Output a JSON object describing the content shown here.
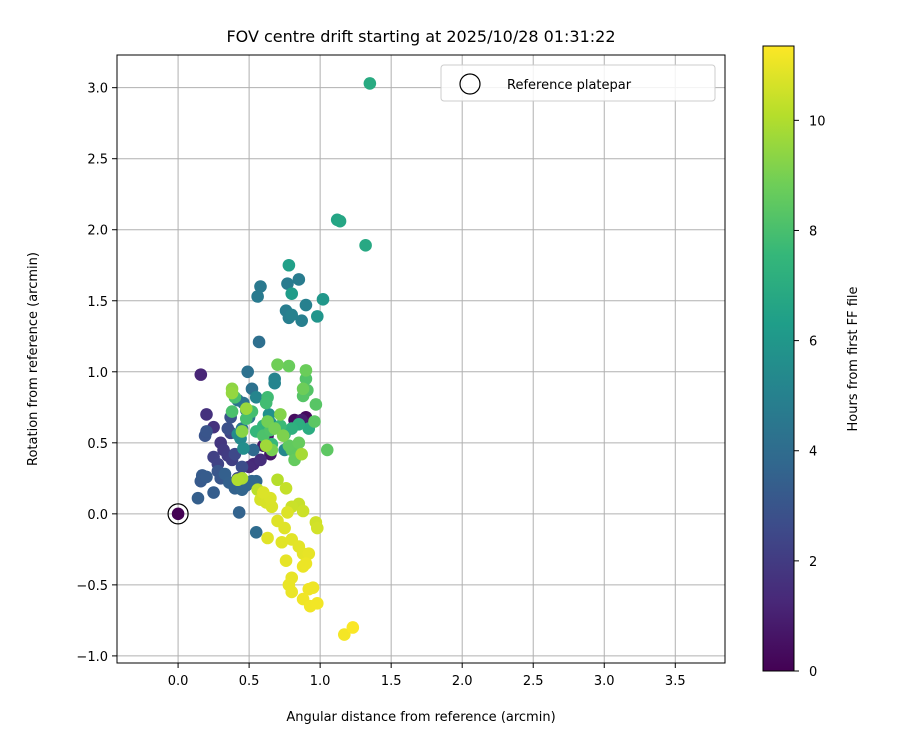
{
  "chart_data": {
    "type": "scatter",
    "title": "FOV centre drift starting at 2025/10/28 01:31:22",
    "xlabel": "Angular distance from reference (arcmin)",
    "ylabel": "Rotation from reference (arcmin)",
    "xlim": [
      -0.43,
      3.85
    ],
    "ylim": [
      -1.05,
      3.23
    ],
    "xticks": [
      0.0,
      0.5,
      1.0,
      1.5,
      2.0,
      2.5,
      3.0,
      3.5
    ],
    "xtick_labels": [
      "0.0",
      "0.5",
      "1.0",
      "1.5",
      "2.0",
      "2.5",
      "3.0",
      "3.5"
    ],
    "yticks": [
      -1.0,
      -0.5,
      0.0,
      0.5,
      1.0,
      1.5,
      2.0,
      2.5,
      3.0
    ],
    "ytick_labels": [
      "−1.0",
      "−0.5",
      "0.0",
      "0.5",
      "1.0",
      "1.5",
      "2.0",
      "2.5",
      "3.0"
    ],
    "grid": true,
    "legend": {
      "position": "top-right",
      "entries": [
        "Reference platepar"
      ]
    },
    "colorbar": {
      "label": "Hours from first FF file",
      "range": [
        0,
        11.35
      ],
      "ticks": [
        0,
        2,
        4,
        6,
        8,
        10
      ],
      "tick_labels": [
        "0",
        "2",
        "4",
        "6",
        "8",
        "10"
      ],
      "colormap": [
        "#440154",
        "#482878",
        "#3e4989",
        "#31688e",
        "#26828e",
        "#1f9e89",
        "#35b779",
        "#6ece58",
        "#b5de2b",
        "#fde725"
      ]
    },
    "reference_point": {
      "x": 0.0,
      "y": 0.0
    },
    "points": [
      {
        "x": 0.0,
        "y": 0.0,
        "t": 0.0
      },
      {
        "x": 0.9,
        "y": 0.68,
        "t": 0.3
      },
      {
        "x": 0.82,
        "y": 0.66,
        "t": 0.4
      },
      {
        "x": 0.63,
        "y": 0.55,
        "t": 0.6
      },
      {
        "x": 0.65,
        "y": 0.42,
        "t": 0.7
      },
      {
        "x": 0.6,
        "y": 0.48,
        "t": 0.8
      },
      {
        "x": 0.87,
        "y": 0.66,
        "t": 0.9
      },
      {
        "x": 0.16,
        "y": 0.98,
        "t": 1.2
      },
      {
        "x": 0.53,
        "y": 0.35,
        "t": 1.3
      },
      {
        "x": 0.5,
        "y": 0.33,
        "t": 1.4
      },
      {
        "x": 0.58,
        "y": 0.38,
        "t": 1.5
      },
      {
        "x": 0.2,
        "y": 0.7,
        "t": 1.6
      },
      {
        "x": 0.25,
        "y": 0.61,
        "t": 1.7
      },
      {
        "x": 0.3,
        "y": 0.5,
        "t": 1.8
      },
      {
        "x": 0.32,
        "y": 0.45,
        "t": 1.9
      },
      {
        "x": 0.35,
        "y": 0.41,
        "t": 2.0
      },
      {
        "x": 0.38,
        "y": 0.38,
        "t": 2.1
      },
      {
        "x": 0.25,
        "y": 0.4,
        "t": 2.2
      },
      {
        "x": 0.28,
        "y": 0.35,
        "t": 2.3
      },
      {
        "x": 0.37,
        "y": 0.57,
        "t": 2.4
      },
      {
        "x": 0.4,
        "y": 0.42,
        "t": 2.5
      },
      {
        "x": 0.42,
        "y": 0.25,
        "t": 2.6
      },
      {
        "x": 0.45,
        "y": 0.33,
        "t": 2.7
      },
      {
        "x": 0.35,
        "y": 0.6,
        "t": 2.8
      },
      {
        "x": 0.37,
        "y": 0.68,
        "t": 2.9
      },
      {
        "x": 0.19,
        "y": 0.55,
        "t": 2.95
      },
      {
        "x": 0.2,
        "y": 0.58,
        "t": 3.0
      },
      {
        "x": 0.28,
        "y": 0.3,
        "t": 3.05
      },
      {
        "x": 0.3,
        "y": 0.25,
        "t": 3.1
      },
      {
        "x": 0.16,
        "y": 0.23,
        "t": 3.2
      },
      {
        "x": 0.17,
        "y": 0.27,
        "t": 3.25
      },
      {
        "x": 0.2,
        "y": 0.26,
        "t": 3.3
      },
      {
        "x": 0.25,
        "y": 0.15,
        "t": 3.35
      },
      {
        "x": 0.14,
        "y": 0.11,
        "t": 3.4
      },
      {
        "x": 0.33,
        "y": 0.28,
        "t": 3.45
      },
      {
        "x": 0.36,
        "y": 0.22,
        "t": 3.5
      },
      {
        "x": 0.4,
        "y": 0.18,
        "t": 3.55
      },
      {
        "x": 0.43,
        "y": 0.01,
        "t": 3.6
      },
      {
        "x": 0.45,
        "y": 0.17,
        "t": 3.65
      },
      {
        "x": 0.48,
        "y": 0.2,
        "t": 3.7
      },
      {
        "x": 0.55,
        "y": 0.23,
        "t": 3.75
      },
      {
        "x": 0.52,
        "y": 0.23,
        "t": 3.8
      },
      {
        "x": 0.53,
        "y": 0.45,
        "t": 3.85
      },
      {
        "x": 0.55,
        "y": -0.13,
        "t": 4.0
      },
      {
        "x": 0.57,
        "y": 1.21,
        "t": 4.1
      },
      {
        "x": 0.49,
        "y": 1.0,
        "t": 4.2
      },
      {
        "x": 0.52,
        "y": 0.88,
        "t": 4.25
      },
      {
        "x": 0.46,
        "y": 0.78,
        "t": 4.3
      },
      {
        "x": 0.42,
        "y": 0.8,
        "t": 4.35
      },
      {
        "x": 0.48,
        "y": 0.73,
        "t": 4.4
      },
      {
        "x": 0.5,
        "y": 0.68,
        "t": 4.45
      },
      {
        "x": 0.45,
        "y": 0.6,
        "t": 4.5
      },
      {
        "x": 0.58,
        "y": 1.6,
        "t": 4.6
      },
      {
        "x": 0.56,
        "y": 1.53,
        "t": 4.65
      },
      {
        "x": 0.77,
        "y": 1.62,
        "t": 4.7
      },
      {
        "x": 0.85,
        "y": 1.65,
        "t": 4.75
      },
      {
        "x": 0.76,
        "y": 1.43,
        "t": 4.8
      },
      {
        "x": 0.78,
        "y": 1.38,
        "t": 4.85
      },
      {
        "x": 0.87,
        "y": 1.36,
        "t": 4.9
      },
      {
        "x": 0.9,
        "y": 1.47,
        "t": 4.95
      },
      {
        "x": 0.8,
        "y": 1.4,
        "t": 5.0
      },
      {
        "x": 0.68,
        "y": 0.95,
        "t": 5.1
      },
      {
        "x": 0.68,
        "y": 0.92,
        "t": 5.15
      },
      {
        "x": 0.55,
        "y": 0.82,
        "t": 5.2
      },
      {
        "x": 0.75,
        "y": 0.45,
        "t": 5.3
      },
      {
        "x": 0.44,
        "y": 0.53,
        "t": 5.4
      },
      {
        "x": 0.42,
        "y": 0.56,
        "t": 5.5
      },
      {
        "x": 0.46,
        "y": 0.46,
        "t": 5.6
      },
      {
        "x": 0.64,
        "y": 0.7,
        "t": 5.7
      },
      {
        "x": 0.65,
        "y": 0.64,
        "t": 5.8
      },
      {
        "x": 0.98,
        "y": 1.39,
        "t": 5.9
      },
      {
        "x": 1.02,
        "y": 1.51,
        "t": 6.0
      },
      {
        "x": 0.8,
        "y": 1.55,
        "t": 6.2
      },
      {
        "x": 0.78,
        "y": 1.75,
        "t": 6.4
      },
      {
        "x": 1.12,
        "y": 2.07,
        "t": 6.6
      },
      {
        "x": 1.14,
        "y": 2.06,
        "t": 6.7
      },
      {
        "x": 1.32,
        "y": 1.89,
        "t": 6.8
      },
      {
        "x": 1.35,
        "y": 3.03,
        "t": 6.9
      },
      {
        "x": 0.92,
        "y": 0.6,
        "t": 7.0
      },
      {
        "x": 0.85,
        "y": 0.63,
        "t": 7.1
      },
      {
        "x": 0.8,
        "y": 0.6,
        "t": 7.2
      },
      {
        "x": 0.75,
        "y": 0.56,
        "t": 7.3
      },
      {
        "x": 0.6,
        "y": 0.62,
        "t": 7.4
      },
      {
        "x": 0.55,
        "y": 0.58,
        "t": 7.5
      },
      {
        "x": 0.66,
        "y": 0.49,
        "t": 7.6
      },
      {
        "x": 0.72,
        "y": 0.62,
        "t": 7.7
      },
      {
        "x": 0.63,
        "y": 0.82,
        "t": 7.8
      },
      {
        "x": 0.62,
        "y": 0.78,
        "t": 7.85
      },
      {
        "x": 0.52,
        "y": 0.72,
        "t": 7.9
      },
      {
        "x": 0.48,
        "y": 0.67,
        "t": 7.95
      },
      {
        "x": 0.4,
        "y": 0.82,
        "t": 8.0
      },
      {
        "x": 0.38,
        "y": 0.72,
        "t": 8.05
      },
      {
        "x": 0.6,
        "y": 0.55,
        "t": 8.1
      },
      {
        "x": 0.65,
        "y": 0.59,
        "t": 8.15
      },
      {
        "x": 0.9,
        "y": 0.95,
        "t": 8.2
      },
      {
        "x": 0.91,
        "y": 0.87,
        "t": 8.25
      },
      {
        "x": 0.88,
        "y": 0.83,
        "t": 8.3
      },
      {
        "x": 0.97,
        "y": 0.77,
        "t": 8.35
      },
      {
        "x": 0.96,
        "y": 0.65,
        "t": 8.4
      },
      {
        "x": 1.05,
        "y": 0.45,
        "t": 8.45
      },
      {
        "x": 0.8,
        "y": 0.45,
        "t": 8.5
      },
      {
        "x": 0.78,
        "y": 0.48,
        "t": 8.55
      },
      {
        "x": 0.82,
        "y": 0.38,
        "t": 8.6
      },
      {
        "x": 0.85,
        "y": 0.5,
        "t": 8.65
      },
      {
        "x": 0.78,
        "y": 1.04,
        "t": 8.7
      },
      {
        "x": 0.9,
        "y": 1.01,
        "t": 8.75
      },
      {
        "x": 0.88,
        "y": 0.88,
        "t": 8.8
      },
      {
        "x": 0.7,
        "y": 1.05,
        "t": 8.85
      },
      {
        "x": 0.63,
        "y": 0.65,
        "t": 8.9
      },
      {
        "x": 0.68,
        "y": 0.6,
        "t": 8.95
      },
      {
        "x": 0.66,
        "y": 0.45,
        "t": 9.0
      },
      {
        "x": 0.74,
        "y": 0.55,
        "t": 9.1
      },
      {
        "x": 0.72,
        "y": 0.7,
        "t": 9.2
      },
      {
        "x": 0.45,
        "y": 0.58,
        "t": 9.3
      },
      {
        "x": 0.38,
        "y": 0.88,
        "t": 9.4
      },
      {
        "x": 0.38,
        "y": 0.85,
        "t": 9.5
      },
      {
        "x": 0.48,
        "y": 0.74,
        "t": 9.6
      },
      {
        "x": 0.62,
        "y": 0.48,
        "t": 9.7
      },
      {
        "x": 0.87,
        "y": 0.42,
        "t": 9.8
      },
      {
        "x": 0.45,
        "y": 0.25,
        "t": 9.9
      },
      {
        "x": 0.42,
        "y": 0.24,
        "t": 10.0
      },
      {
        "x": 0.7,
        "y": 0.24,
        "t": 10.1
      },
      {
        "x": 0.56,
        "y": 0.17,
        "t": 10.2
      },
      {
        "x": 0.6,
        "y": 0.13,
        "t": 10.3
      },
      {
        "x": 0.76,
        "y": 0.18,
        "t": 10.35
      },
      {
        "x": 0.85,
        "y": 0.07,
        "t": 10.4
      },
      {
        "x": 0.8,
        "y": 0.05,
        "t": 10.45
      },
      {
        "x": 0.88,
        "y": 0.02,
        "t": 10.5
      },
      {
        "x": 0.97,
        "y": -0.06,
        "t": 10.55
      },
      {
        "x": 0.98,
        "y": -0.1,
        "t": 10.6
      },
      {
        "x": 0.58,
        "y": 0.1,
        "t": 10.65
      },
      {
        "x": 0.62,
        "y": 0.08,
        "t": 10.7
      },
      {
        "x": 0.66,
        "y": 0.05,
        "t": 10.72
      },
      {
        "x": 0.65,
        "y": 0.11,
        "t": 10.74
      },
      {
        "x": 0.6,
        "y": 0.15,
        "t": 10.76
      },
      {
        "x": 0.77,
        "y": 0.01,
        "t": 10.78
      },
      {
        "x": 0.7,
        "y": -0.05,
        "t": 10.8
      },
      {
        "x": 0.75,
        "y": -0.1,
        "t": 10.82
      },
      {
        "x": 0.63,
        "y": -0.17,
        "t": 10.84
      },
      {
        "x": 0.73,
        "y": -0.2,
        "t": 10.86
      },
      {
        "x": 0.8,
        "y": -0.18,
        "t": 10.88
      },
      {
        "x": 0.85,
        "y": -0.23,
        "t": 10.9
      },
      {
        "x": 0.88,
        "y": -0.28,
        "t": 10.92
      },
      {
        "x": 0.76,
        "y": -0.33,
        "t": 10.94
      },
      {
        "x": 0.92,
        "y": -0.28,
        "t": 10.96
      },
      {
        "x": 0.8,
        "y": -0.45,
        "t": 10.98
      },
      {
        "x": 0.78,
        "y": -0.5,
        "t": 11.0
      },
      {
        "x": 0.8,
        "y": -0.55,
        "t": 11.02
      },
      {
        "x": 0.88,
        "y": -0.37,
        "t": 11.04
      },
      {
        "x": 0.9,
        "y": -0.35,
        "t": 11.06
      },
      {
        "x": 0.95,
        "y": -0.52,
        "t": 11.08
      },
      {
        "x": 0.92,
        "y": -0.53,
        "t": 11.1
      },
      {
        "x": 0.88,
        "y": -0.6,
        "t": 11.12
      },
      {
        "x": 0.93,
        "y": -0.65,
        "t": 11.14
      },
      {
        "x": 0.98,
        "y": -0.63,
        "t": 11.16
      },
      {
        "x": 1.17,
        "y": -0.85,
        "t": 11.2
      },
      {
        "x": 1.23,
        "y": -0.8,
        "t": 11.3
      }
    ]
  }
}
